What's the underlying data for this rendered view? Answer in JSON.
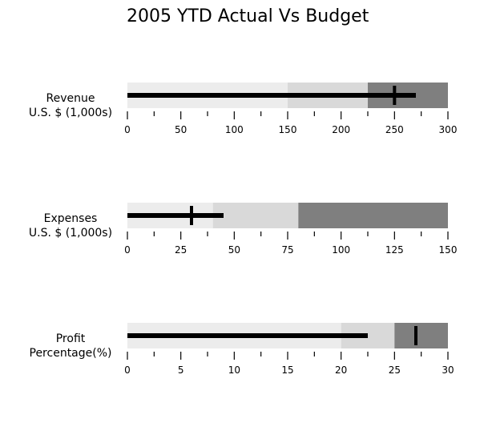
{
  "chart_data": {
    "type": "bullet",
    "title": "2005 YTD Actual Vs Budget",
    "colors": {
      "range_light": "#ececec",
      "range_mid": "#d9d9d9",
      "range_dark": "#7f7f7f",
      "bar": "#000000",
      "marker": "#000000"
    },
    "bullets": [
      {
        "label_lines": [
          "Revenue",
          "U.S. $ (1,000s)"
        ],
        "ranges": [
          150,
          225,
          300
        ],
        "value": 270,
        "target": 250,
        "axis": {
          "min": 0,
          "max": 300
        },
        "tick_labels": [
          "0",
          "50",
          "100",
          "150",
          "200",
          "250",
          "300"
        ],
        "major_ticks": [
          0,
          50,
          100,
          150,
          200,
          250,
          300
        ],
        "minor_ticks": [
          25,
          75,
          125,
          175,
          225,
          275
        ]
      },
      {
        "label_lines": [
          "Expenses",
          "U.S. $ (1,000s)"
        ],
        "ranges": [
          40,
          80,
          150
        ],
        "value": 45,
        "target": 30,
        "axis": {
          "min": 0,
          "max": 150
        },
        "tick_labels": [
          "0",
          "25",
          "50",
          "75",
          "100",
          "125",
          "150"
        ],
        "major_ticks": [
          0,
          25,
          50,
          75,
          100,
          125,
          150
        ],
        "minor_ticks": [
          12.5,
          37.5,
          62.5,
          87.5,
          112.5,
          137.5
        ]
      },
      {
        "label_lines": [
          "Profit",
          "Percentage(%)"
        ],
        "ranges": [
          20,
          25,
          30
        ],
        "value": 22.5,
        "target": 27,
        "axis": {
          "min": 0,
          "max": 30
        },
        "tick_labels": [
          "0",
          "5",
          "10",
          "15",
          "20",
          "25",
          "30"
        ],
        "major_ticks": [
          0,
          5,
          10,
          15,
          20,
          25,
          30
        ],
        "minor_ticks": [
          2.5,
          7.5,
          12.5,
          17.5,
          22.5,
          27.5
        ]
      }
    ]
  }
}
